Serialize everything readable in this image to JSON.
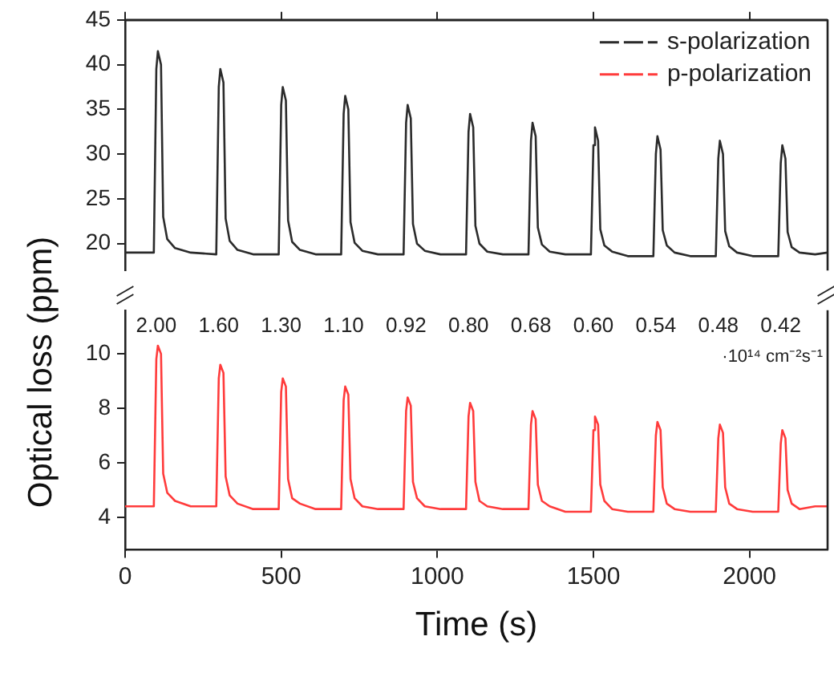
{
  "chart_data": [
    {
      "type": "line",
      "ylabel": "Optical loss (ppm)",
      "x": [
        0,
        92,
        100,
        105,
        115,
        122,
        135,
        160,
        210,
        292,
        300,
        305,
        315,
        322,
        335,
        360,
        410,
        492,
        500,
        505,
        515,
        522,
        535,
        560,
        610,
        692,
        700,
        705,
        715,
        722,
        735,
        760,
        810,
        892,
        900,
        905,
        915,
        922,
        935,
        960,
        1010,
        1092,
        1100,
        1105,
        1115,
        1122,
        1135,
        1160,
        1210,
        1292,
        1300,
        1305,
        1315,
        1322,
        1335,
        1360,
        1410,
        1492,
        1500,
        1505,
        1515,
        1522,
        1535,
        1560,
        1610,
        1692,
        1700,
        1705,
        1715,
        1722,
        1735,
        1760,
        1810,
        1892,
        1900,
        1905,
        1915,
        1922,
        1935,
        1960,
        2010,
        2092,
        2100,
        2105,
        2115,
        2122,
        2135,
        2160,
        2210,
        2250
      ],
      "series": [
        {
          "name": "s-polarization",
          "color": "#2b2b2b",
          "values": [
            19,
            19,
            39.5,
            41.5,
            40,
            23,
            20.5,
            19.5,
            19,
            18.8,
            37.5,
            39.5,
            38,
            22.8,
            20.3,
            19.3,
            18.8,
            18.8,
            35.5,
            37.5,
            36,
            22.6,
            20.2,
            19.3,
            18.8,
            18.8,
            34.5,
            36.5,
            35,
            22.4,
            20.1,
            19.2,
            18.8,
            18.8,
            33.5,
            35.5,
            34,
            22.2,
            20,
            19.2,
            18.8,
            18.8,
            32.5,
            34.5,
            33,
            22,
            20,
            19.1,
            18.8,
            18.8,
            31.5,
            33.5,
            32,
            21.8,
            19.9,
            19.1,
            18.8,
            18.8,
            31,
            33,
            31.5,
            21.6,
            19.8,
            19.1,
            18.6,
            18.6,
            30,
            32,
            30.5,
            21.5,
            19.8,
            19,
            18.6,
            18.6,
            29.5,
            31.5,
            30,
            21.4,
            19.7,
            19,
            18.6,
            18.6,
            29,
            31,
            29.5,
            21.3,
            19.6,
            19,
            18.8,
            19
          ]
        }
      ],
      "xlim": [
        0,
        2250
      ],
      "xticks": [
        0,
        500,
        1000,
        1500,
        2000
      ],
      "ylim": [
        17,
        45
      ],
      "yticks": [
        20,
        25,
        30,
        35,
        40,
        45
      ],
      "tick_labels": "y",
      "legend": "top right",
      "grid": false
    },
    {
      "type": "line",
      "xlabel": "Time (s)",
      "x": [
        0,
        92,
        100,
        105,
        115,
        122,
        135,
        160,
        210,
        292,
        300,
        305,
        315,
        322,
        335,
        360,
        410,
        492,
        500,
        505,
        515,
        522,
        535,
        560,
        610,
        692,
        700,
        705,
        715,
        722,
        735,
        760,
        810,
        892,
        900,
        905,
        915,
        922,
        935,
        960,
        1010,
        1092,
        1100,
        1105,
        1115,
        1122,
        1135,
        1160,
        1210,
        1292,
        1300,
        1305,
        1315,
        1322,
        1335,
        1360,
        1410,
        1492,
        1500,
        1505,
        1515,
        1522,
        1535,
        1560,
        1610,
        1692,
        1700,
        1705,
        1715,
        1722,
        1735,
        1760,
        1810,
        1892,
        1900,
        1905,
        1915,
        1922,
        1935,
        1960,
        2010,
        2092,
        2100,
        2105,
        2115,
        2122,
        2135,
        2160,
        2210,
        2250
      ],
      "series": [
        {
          "name": "p-polarization",
          "color": "#ff3b3b",
          "values": [
            4.4,
            4.4,
            9.8,
            10.3,
            10,
            5.6,
            4.9,
            4.6,
            4.4,
            4.4,
            9.1,
            9.6,
            9.3,
            5.5,
            4.8,
            4.5,
            4.3,
            4.3,
            8.6,
            9.1,
            8.8,
            5.4,
            4.7,
            4.5,
            4.3,
            4.3,
            8.3,
            8.8,
            8.5,
            5.4,
            4.7,
            4.4,
            4.3,
            4.3,
            7.9,
            8.4,
            8.1,
            5.3,
            4.7,
            4.4,
            4.3,
            4.3,
            7.7,
            8.2,
            7.9,
            5.3,
            4.6,
            4.4,
            4.3,
            4.3,
            7.4,
            7.9,
            7.6,
            5.2,
            4.6,
            4.4,
            4.2,
            4.2,
            7.2,
            7.7,
            7.4,
            5.2,
            4.6,
            4.3,
            4.2,
            4.2,
            7,
            7.5,
            7.2,
            5.1,
            4.5,
            4.3,
            4.2,
            4.2,
            6.9,
            7.4,
            7.1,
            5.1,
            4.5,
            4.3,
            4.2,
            4.2,
            6.7,
            7.2,
            6.9,
            5,
            4.5,
            4.3,
            4.4,
            4.4
          ]
        }
      ],
      "xlim": [
        0,
        2250
      ],
      "xticks": [
        0,
        500,
        1000,
        1500,
        2000
      ],
      "ylim": [
        2.8,
        11.6
      ],
      "yticks": [
        4,
        6,
        8,
        10
      ],
      "annotations": [
        "2.00",
        "1.60",
        "1.30",
        "1.10",
        "0.92",
        "0.80",
        "0.68",
        "0.60",
        "0.54",
        "0.48",
        "0.42",
        "·10¹⁴ cm⁻²s⁻¹"
      ],
      "grid": false
    }
  ]
}
